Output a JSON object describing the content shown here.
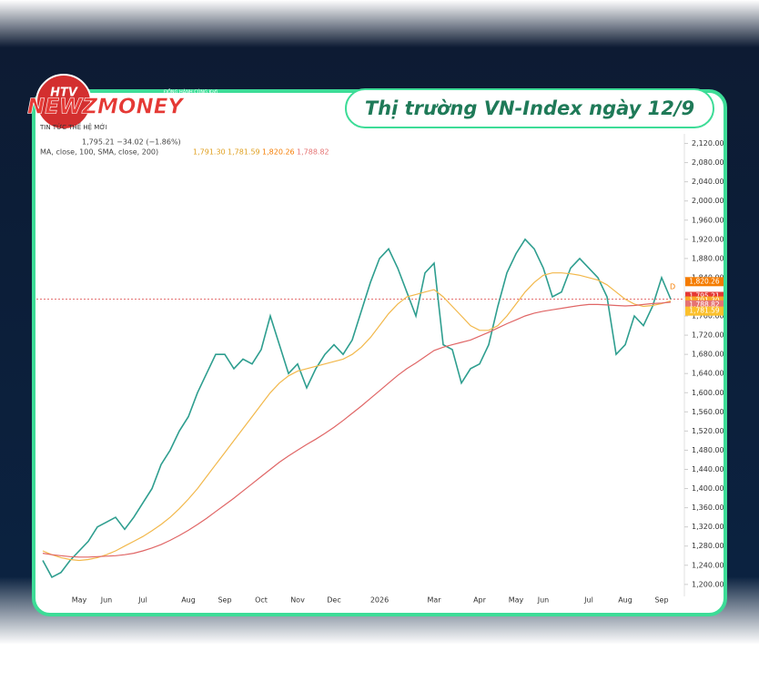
{
  "branding": {
    "logo": "HTV",
    "brand": "NEWZMONEY",
    "tagline": "TIN TỨC THẾ HỆ MỚI",
    "partner": "ĐỒNG HÀNH CÙNG Kafi"
  },
  "chart_data": {
    "type": "line",
    "title": "Thị trường VN-Index ngày 12/9",
    "annotations": [
      "1,795.21 −34.02 (−1.86%)",
      "MA, close, 100, SMA, close, 200)",
      "1,791.30",
      "1,781.59",
      "1,820.26",
      "1,788.82",
      "D"
    ],
    "categories": [
      null,
      null,
      null,
      null,
      "May",
      null,
      null,
      "Jun",
      null,
      null,
      null,
      "Jul",
      null,
      null,
      null,
      null,
      "Aug",
      null,
      null,
      null,
      "Sep",
      null,
      null,
      null,
      "Oct",
      null,
      null,
      null,
      "Nov",
      null,
      null,
      null,
      "Dec",
      null,
      null,
      null,
      null,
      "2026",
      null,
      null,
      null,
      null,
      null,
      "Mar",
      null,
      null,
      null,
      null,
      "Apr",
      null,
      null,
      null,
      "May",
      null,
      null,
      "Jun",
      null,
      null,
      null,
      null,
      "Jul",
      null,
      null,
      null,
      "Aug",
      null,
      null,
      null,
      "Sep",
      null
    ],
    "series": [
      {
        "color": "#2e9e8f",
        "values": [
          1250,
          1215,
          1225,
          1250,
          1270,
          1290,
          1320,
          1330,
          1340,
          1315,
          1340,
          1370,
          1400,
          1450,
          1480,
          1520,
          1550,
          1600,
          1640,
          1680,
          1680,
          1650,
          1670,
          1660,
          1690,
          1760,
          1700,
          1640,
          1660,
          1610,
          1650,
          1680,
          1700,
          1680,
          1710,
          1770,
          1830,
          1880,
          1900,
          1860,
          1810,
          1760,
          1850,
          1870,
          1700,
          1690,
          1620,
          1650,
          1660,
          1700,
          1780,
          1850,
          1890,
          1920,
          1900,
          1860,
          1800,
          1810,
          1860,
          1880,
          1860,
          1840,
          1800,
          1680,
          1700,
          1760,
          1740,
          1780,
          1840,
          1795.21
        ]
      },
      {
        "color": "#f2b84b",
        "values": [
          1270,
          1262,
          1256,
          1252,
          1250,
          1252,
          1256,
          1262,
          1270,
          1280,
          1290,
          1300,
          1312,
          1325,
          1340,
          1358,
          1378,
          1400,
          1425,
          1450,
          1475,
          1500,
          1525,
          1550,
          1575,
          1600,
          1620,
          1635,
          1645,
          1650,
          1655,
          1660,
          1665,
          1670,
          1680,
          1695,
          1715,
          1740,
          1765,
          1785,
          1800,
          1805,
          1810,
          1815,
          1800,
          1780,
          1760,
          1740,
          1730,
          1730,
          1740,
          1760,
          1785,
          1810,
          1830,
          1845,
          1850,
          1850,
          1848,
          1845,
          1840,
          1835,
          1825,
          1810,
          1795,
          1785,
          1780,
          1782,
          1786,
          1791.3
        ]
      },
      {
        "color": "#e06666",
        "values": [
          1265,
          1262,
          1260,
          1258,
          1257,
          1257,
          1258,
          1259,
          1260,
          1262,
          1265,
          1270,
          1276,
          1283,
          1292,
          1302,
          1313,
          1325,
          1338,
          1352,
          1366,
          1380,
          1395,
          1410,
          1425,
          1440,
          1455,
          1468,
          1480,
          1492,
          1503,
          1515,
          1528,
          1542,
          1557,
          1572,
          1588,
          1604,
          1620,
          1636,
          1650,
          1662,
          1675,
          1688,
          1695,
          1700,
          1705,
          1710,
          1718,
          1726,
          1735,
          1744,
          1752,
          1760,
          1766,
          1770,
          1773,
          1776,
          1779,
          1782,
          1784,
          1784,
          1783,
          1782,
          1781,
          1782,
          1784,
          1786,
          1787,
          1788.82
        ]
      }
    ],
    "price_labels": [
      {
        "value": 1820.26,
        "label": "1,820.26",
        "color": "#f57c00"
      },
      {
        "value": 1795.21,
        "label": "1,795.21",
        "color": "#e53935"
      },
      {
        "value": 1791.3,
        "label": "1,791.30",
        "color": "#f9a825"
      },
      {
        "value": 1788.82,
        "label": "1,788.82",
        "color": "#e57373"
      },
      {
        "value": 1781.59,
        "label": "1,781.59",
        "color": "#fbc02d"
      }
    ],
    "ylim": [
      1175,
      2140
    ],
    "yticks": [
      {
        "value": 1200,
        "label": "1,200.00"
      },
      {
        "value": 1240,
        "label": "1,240.00"
      },
      {
        "value": 1280,
        "label": "1,280.00"
      },
      {
        "value": 1320,
        "label": "1,320.00"
      },
      {
        "value": 1360,
        "label": "1,360.00"
      },
      {
        "value": 1400,
        "label": "1,400.00"
      },
      {
        "value": 1440,
        "label": "1,440.00"
      },
      {
        "value": 1480,
        "label": "1,480.00"
      },
      {
        "value": 1520,
        "label": "1,520.00"
      },
      {
        "value": 1560,
        "label": "1,560.00"
      },
      {
        "value": 1600,
        "label": "1,600.00"
      },
      {
        "value": 1640,
        "label": "1,640.00"
      },
      {
        "value": 1680,
        "label": "1,680.00"
      },
      {
        "value": 1720,
        "label": "1,720.00"
      },
      {
        "value": 1760,
        "label": "1,760.00"
      },
      {
        "value": 1800,
        "label": "1,800.00"
      },
      {
        "value": 1840,
        "label": "1,840.00"
      },
      {
        "value": 1880,
        "label": "1,880.00"
      },
      {
        "value": 1920,
        "label": "1,920.00"
      },
      {
        "value": 1960,
        "label": "1,960.00"
      },
      {
        "value": 2000,
        "label": "2,000.00"
      },
      {
        "value": 2040,
        "label": "2,040.00"
      },
      {
        "value": 2080,
        "label": "2,080.00"
      },
      {
        "value": 2120,
        "label": "2,120.00"
      }
    ],
    "grid": false
  }
}
